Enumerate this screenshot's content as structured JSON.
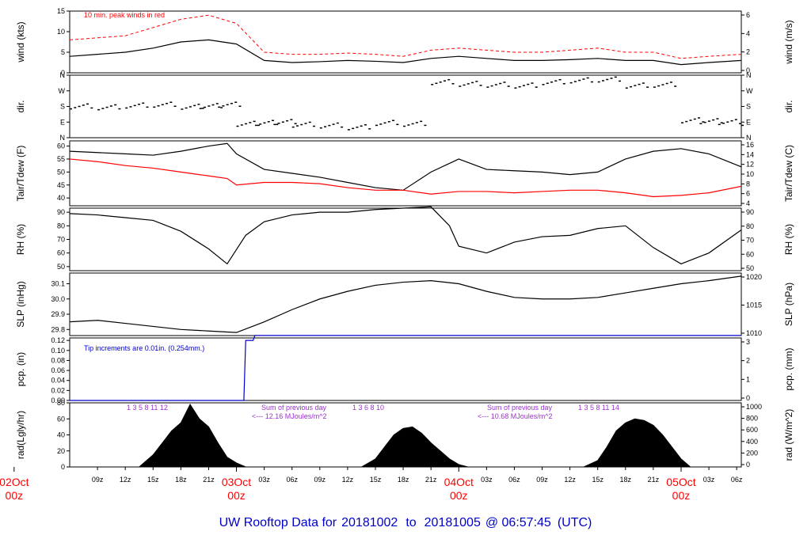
{
  "footer": {
    "prefix": "UW Rooftop Data for",
    "start": "20181002",
    "to": "to",
    "end": "20181005",
    "at": "@ 06:57:45",
    "tz": "(UTC)"
  },
  "x_axis": {
    "tick_labels": [
      "09z",
      "12z",
      "15z",
      "18z",
      "21z",
      "03z",
      "06z",
      "09z",
      "12z",
      "15z",
      "18z",
      "21z",
      "03z",
      "06z",
      "09z",
      "12z",
      "15z",
      "18z",
      "21z",
      "03z",
      "06z"
    ],
    "day_labels": [
      {
        "date": "02Oct",
        "hour": "00z"
      },
      {
        "date": "03Oct",
        "hour": "00z"
      },
      {
        "date": "04Oct",
        "hour": "00z"
      },
      {
        "date": "05Oct",
        "hour": "00z"
      }
    ]
  },
  "colors": {
    "series": "#000000",
    "dewpoint": "#ff0000",
    "peak": "#ff0000",
    "precip": "#0000cc",
    "annotation_rad": "#9933cc",
    "day_label": "#ff0000",
    "footer": "#0000cc",
    "frame": "#000000"
  },
  "chart_data": [
    {
      "id": "wind",
      "type": "line",
      "ylabel": "wind (kts)",
      "ylabel_right": "wind (m/s)",
      "annotation": "10 min. peak winds in red",
      "yticks": [
        0,
        5,
        10,
        15
      ],
      "yticks_right": [
        0,
        2,
        4,
        6
      ],
      "ylim": [
        0,
        15
      ],
      "x_hours": [
        6,
        9,
        12,
        15,
        18,
        21,
        24,
        27,
        30,
        33,
        36,
        39,
        42,
        45,
        48,
        51,
        54,
        57,
        60,
        63,
        66,
        69,
        72,
        75,
        78.5
      ],
      "series": [
        {
          "values": [
            4,
            4.5,
            5,
            6,
            7.5,
            8,
            7,
            3,
            2.5,
            2.7,
            3,
            2.8,
            2.5,
            3.5,
            4,
            3.5,
            3,
            3,
            3.2,
            3.5,
            3,
            3,
            2,
            2.5,
            3
          ]
        },
        {
          "name": "10 min. peak winds",
          "values": [
            8,
            8.5,
            9,
            11,
            13,
            14,
            12,
            5,
            4.5,
            4.5,
            4.8,
            4.5,
            4,
            5.5,
            6,
            5.5,
            5,
            5,
            5.5,
            6,
            5,
            5,
            3.5,
            4,
            4.5
          ]
        }
      ]
    },
    {
      "id": "dir",
      "type": "scatter",
      "ylabel": "dir.",
      "ylabel_right": "dir.",
      "ytick_labels": [
        "N",
        "E",
        "S",
        "W",
        "N"
      ],
      "ylim": [
        0,
        360
      ],
      "x_hours": [
        6,
        9,
        12,
        15,
        18,
        20,
        22,
        24,
        26,
        28,
        30,
        33,
        36,
        39,
        42,
        45,
        48,
        51,
        54,
        57,
        60,
        63,
        66,
        69,
        72,
        74,
        76,
        78.5
      ],
      "values": [
        180,
        175,
        185,
        190,
        178,
        182,
        190,
        80,
        85,
        90,
        75,
        70,
        60,
        85,
        80,
        320,
        310,
        305,
        300,
        320,
        330,
        335,
        300,
        305,
        100,
        95,
        90,
        85
      ]
    },
    {
      "id": "temp",
      "type": "line",
      "ylabel": "Tair/Tdew (F)",
      "ylabel_right": "Tair/Tdew (C)",
      "yticks": [
        40,
        45,
        50,
        55,
        60
      ],
      "yticks_right": [
        4,
        6,
        8,
        10,
        12,
        14,
        16
      ],
      "ylim": [
        37,
        62
      ],
      "x_hours": [
        6,
        9,
        12,
        15,
        18,
        21,
        23,
        24,
        27,
        30,
        33,
        36,
        39,
        42,
        45,
        48,
        51,
        54,
        57,
        60,
        63,
        66,
        69,
        72,
        75,
        78.5
      ],
      "series": [
        {
          "name": "Tair",
          "values": [
            58,
            57.5,
            57,
            56.5,
            58,
            60,
            61,
            57,
            51,
            49.5,
            48,
            46,
            44,
            43,
            50,
            55,
            51,
            50.5,
            50,
            49,
            50,
            55,
            58,
            59,
            57,
            52
          ]
        },
        {
          "name": "Tdew",
          "values": [
            55,
            54,
            52.5,
            51.5,
            50,
            48.5,
            47.5,
            45,
            46,
            46,
            45.5,
            44,
            43,
            43,
            41.5,
            42.5,
            42.5,
            42,
            42.5,
            43,
            43,
            42,
            40.5,
            41,
            42,
            44.5
          ]
        }
      ]
    },
    {
      "id": "rh",
      "type": "line",
      "ylabel": "RH (%)",
      "ylabel_right": "RH (%)",
      "yticks": [
        50,
        60,
        70,
        80,
        90
      ],
      "yticks_right": [
        50,
        60,
        70,
        80,
        90
      ],
      "ylim": [
        47,
        93
      ],
      "x_hours": [
        6,
        9,
        12,
        15,
        18,
        21,
        23,
        25,
        27,
        30,
        33,
        36,
        39,
        42,
        45,
        47,
        48,
        51,
        54,
        57,
        60,
        63,
        66,
        69,
        72,
        75,
        78.5
      ],
      "series": [
        {
          "values": [
            89,
            88,
            86,
            84,
            76,
            63,
            52,
            73,
            83,
            88,
            90,
            90,
            92,
            93,
            94,
            80,
            65,
            60,
            68,
            72,
            73,
            78,
            80,
            64,
            52,
            60,
            77
          ]
        }
      ]
    },
    {
      "id": "slp",
      "type": "line",
      "ylabel": "SLP (inHg)",
      "ylabel_right": "SLP (hPa)",
      "yticks": [
        29.8,
        29.9,
        30.0,
        30.1
      ],
      "yticks_right": [
        1010,
        1015,
        1020
      ],
      "ylim": [
        29.76,
        30.17
      ],
      "x_hours": [
        6,
        9,
        12,
        15,
        18,
        21,
        24,
        27,
        30,
        33,
        36,
        39,
        42,
        45,
        48,
        51,
        54,
        57,
        60,
        63,
        66,
        69,
        72,
        75,
        78.5
      ],
      "series": [
        {
          "values": [
            29.85,
            29.86,
            29.84,
            29.82,
            29.8,
            29.79,
            29.78,
            29.85,
            29.93,
            30.0,
            30.05,
            30.09,
            30.11,
            30.12,
            30.1,
            30.05,
            30.01,
            30.0,
            30.0,
            30.01,
            30.04,
            30.07,
            30.1,
            30.12,
            30.15
          ]
        }
      ]
    },
    {
      "id": "pcp",
      "type": "line",
      "ylabel": "pcp. (in)",
      "ylabel_right": "pcp. (mm)",
      "annotation": "Tip increments are 0.01in. (0.254mm.)",
      "yticks": [
        0.0,
        0.02,
        0.04,
        0.06,
        0.08,
        0.1,
        0.12
      ],
      "yticks_right": [
        0,
        1,
        2,
        3
      ],
      "ylim": [
        0,
        0.125
      ],
      "x_hours": [
        6,
        24.8,
        25.0,
        25.8,
        26.0,
        78.5
      ],
      "series": [
        {
          "values": [
            0.0,
            0.0,
            0.12,
            0.12,
            0.13,
            0.13
          ]
        }
      ]
    },
    {
      "id": "rad",
      "type": "area",
      "ylabel": "rad(Lgly/hr)",
      "ylabel_right": "rad (W/m^2)",
      "yticks": [
        0,
        20,
        40,
        60,
        80
      ],
      "yticks_right": [
        0,
        200,
        400,
        600,
        800,
        1000
      ],
      "ylim": [
        0,
        80
      ],
      "annotations": [
        {
          "hour_marks": "1 3 5 8 11 12",
          "summary_title": "Sum of previous day",
          "summary_value": "<--- 12.16 MJoules/m^2"
        },
        {
          "hour_marks": "1 3 6 8 10",
          "summary_title": "Sum of previous day",
          "summary_value": "<--- 10.68 MJoules/m^2"
        },
        {
          "hour_marks": "1 3 5 8 11 14"
        }
      ],
      "x_hours": [
        13.5,
        15,
        16,
        17,
        18,
        19,
        20,
        21,
        22,
        23,
        24,
        25,
        37.5,
        39,
        40,
        41,
        42,
        43,
        44,
        45,
        46,
        47,
        48,
        49,
        61.5,
        63,
        64,
        65,
        66,
        67,
        68,
        69,
        70,
        71,
        72,
        73
      ],
      "series": [
        {
          "values": [
            0,
            15,
            30,
            45,
            55,
            78,
            60,
            50,
            30,
            12,
            5,
            0,
            0,
            10,
            25,
            40,
            48,
            50,
            42,
            30,
            20,
            10,
            3,
            0,
            0,
            8,
            25,
            45,
            55,
            60,
            58,
            52,
            40,
            25,
            10,
            0
          ]
        }
      ]
    }
  ]
}
